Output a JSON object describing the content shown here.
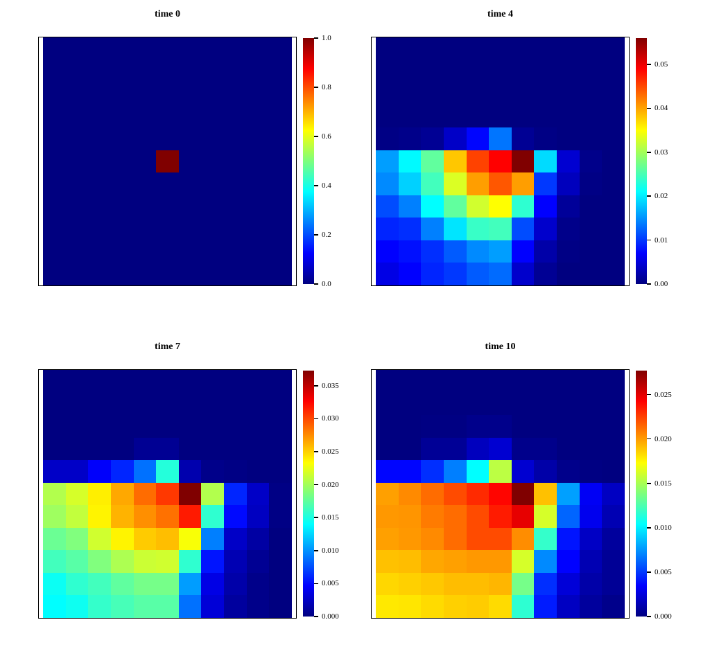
{
  "figure": {
    "background": "#ffffff",
    "layout": "2x2 panel grid of heatmaps with individual colorbars",
    "colormap_name": "jet",
    "colormap_hex_stops": [
      "#000080",
      "#0000ff",
      "#00ffff",
      "#7dff7d",
      "#ffff00",
      "#ff0000",
      "#800000"
    ]
  },
  "chart_data": [
    {
      "type": "heatmap",
      "title": "time 0",
      "grid_size": [
        11,
        11
      ],
      "zmin": 0,
      "zmax": 1.0,
      "colorbar": {
        "position": "right",
        "tick_labels": [
          "1.0",
          "0.8",
          "0.6",
          "0.4",
          "0.2",
          "0.0"
        ],
        "tick_values": [
          1.0,
          0.8,
          0.6,
          0.4,
          0.2,
          0.0
        ]
      },
      "values": [
        [
          0,
          0,
          0,
          0,
          0,
          0,
          0,
          0,
          0,
          0,
          0
        ],
        [
          0,
          0,
          0,
          0,
          0,
          0,
          0,
          0,
          0,
          0,
          0
        ],
        [
          0,
          0,
          0,
          0,
          0,
          0,
          0,
          0,
          0,
          0,
          0
        ],
        [
          0,
          0,
          0,
          0,
          0,
          0,
          0,
          0,
          0,
          0,
          0
        ],
        [
          0,
          0,
          0,
          0,
          0,
          0,
          0,
          0,
          0,
          0,
          0
        ],
        [
          0,
          0,
          0,
          0,
          0,
          1,
          0,
          0,
          0,
          0,
          0
        ],
        [
          0,
          0,
          0,
          0,
          0,
          0,
          0,
          0,
          0,
          0,
          0
        ],
        [
          0,
          0,
          0,
          0,
          0,
          0,
          0,
          0,
          0,
          0,
          0
        ],
        [
          0,
          0,
          0,
          0,
          0,
          0,
          0,
          0,
          0,
          0,
          0
        ],
        [
          0,
          0,
          0,
          0,
          0,
          0,
          0,
          0,
          0,
          0,
          0
        ],
        [
          0,
          0,
          0,
          0,
          0,
          0,
          0,
          0,
          0,
          0,
          0
        ]
      ]
    },
    {
      "type": "heatmap",
      "title": "time 4",
      "grid_size": [
        11,
        11
      ],
      "zmin": 0,
      "zmax": 0.056,
      "colorbar": {
        "position": "right",
        "tick_labels": [
          "0.05",
          "0.04",
          "0.03",
          "0.02",
          "0.01",
          "0.00"
        ],
        "tick_values": [
          0.05,
          0.04,
          0.03,
          0.02,
          0.01,
          0.0
        ]
      },
      "values": [
        [
          0,
          0,
          0,
          0,
          0,
          0,
          0,
          0,
          0,
          0,
          0
        ],
        [
          0,
          0,
          0,
          0,
          0,
          0,
          0,
          0,
          0,
          0,
          0
        ],
        [
          0,
          0,
          0,
          0,
          0,
          0,
          0,
          0,
          0,
          0,
          0
        ],
        [
          0,
          0,
          0,
          0,
          0,
          0,
          0,
          0,
          0,
          0,
          0
        ],
        [
          0.0003,
          0.0006,
          0.0011,
          0.0039,
          0.0073,
          0.0134,
          0.0011,
          0.0003,
          0,
          0,
          0
        ],
        [
          0.0157,
          0.0207,
          0.0263,
          0.0381,
          0.0454,
          0.049,
          0.056,
          0.019,
          0.0045,
          0.0006,
          0
        ],
        [
          0.0146,
          0.0185,
          0.0246,
          0.033,
          0.0403,
          0.0442,
          0.0403,
          0.0101,
          0.0034,
          0.0003,
          0
        ],
        [
          0.0112,
          0.014,
          0.021,
          0.0263,
          0.0325,
          0.035,
          0.0235,
          0.007,
          0.0014,
          0,
          0
        ],
        [
          0.009,
          0.0095,
          0.014,
          0.0196,
          0.0241,
          0.0246,
          0.0112,
          0.0042,
          0.0006,
          0,
          0
        ],
        [
          0.007,
          0.0078,
          0.0095,
          0.012,
          0.0146,
          0.0157,
          0.007,
          0.0022,
          0.0003,
          0,
          0
        ],
        [
          0.0056,
          0.007,
          0.009,
          0.0101,
          0.012,
          0.0129,
          0.0042,
          0.0011,
          0,
          0,
          0
        ]
      ]
    },
    {
      "type": "heatmap",
      "title": "time 7",
      "grid_size": [
        11,
        11
      ],
      "zmin": 0,
      "zmax": 0.0373,
      "colorbar": {
        "position": "right",
        "tick_labels": [
          "0.035",
          "0.030",
          "0.025",
          "0.020",
          "0.015",
          "0.010",
          "0.005",
          "0.000"
        ],
        "tick_values": [
          0.035,
          0.03,
          0.025,
          0.02,
          0.015,
          0.01,
          0.005,
          0.0
        ]
      },
      "values": [
        [
          0,
          0,
          0,
          0,
          0,
          0,
          0,
          0,
          0,
          0,
          0
        ],
        [
          0,
          0,
          0,
          0,
          0,
          0,
          0,
          0,
          0,
          0,
          0
        ],
        [
          0,
          0,
          0,
          0,
          0,
          0,
          0,
          0,
          0,
          0,
          0
        ],
        [
          0,
          0,
          0,
          0,
          0.0007,
          0.0007,
          0,
          0,
          0,
          0,
          0
        ],
        [
          0.0026,
          0.0026,
          0.0045,
          0.006,
          0.0088,
          0.0153,
          0.0017,
          0.0004,
          0.0002,
          0,
          0
        ],
        [
          0.0205,
          0.0218,
          0.0239,
          0.0265,
          0.0287,
          0.0306,
          0.0373,
          0.0205,
          0.006,
          0.0026,
          0.0002
        ],
        [
          0.0198,
          0.0211,
          0.0237,
          0.0261,
          0.0274,
          0.0285,
          0.0317,
          0.0157,
          0.005,
          0.0024,
          0.0002
        ],
        [
          0.0179,
          0.0187,
          0.0216,
          0.0237,
          0.0252,
          0.0257,
          0.0231,
          0.0093,
          0.0026,
          0.0013,
          0
        ],
        [
          0.0164,
          0.0172,
          0.0187,
          0.0203,
          0.0214,
          0.0216,
          0.0157,
          0.0054,
          0.0019,
          0.0007,
          0
        ],
        [
          0.0144,
          0.0157,
          0.0164,
          0.0175,
          0.0183,
          0.0183,
          0.0104,
          0.0037,
          0.0015,
          0.0004,
          0
        ],
        [
          0.014,
          0.0145,
          0.0159,
          0.0166,
          0.0172,
          0.0172,
          0.0088,
          0.0032,
          0.0011,
          0.0004,
          0
        ]
      ]
    },
    {
      "type": "heatmap",
      "title": "time 10",
      "grid_size": [
        11,
        11
      ],
      "zmin": 0,
      "zmax": 0.0277,
      "colorbar": {
        "position": "right",
        "tick_labels": [
          "0.025",
          "0.020",
          "0.015",
          "0.010",
          "0.005",
          "0.000"
        ],
        "tick_values": [
          0.025,
          0.02,
          0.015,
          0.01,
          0.005,
          0.0
        ]
      },
      "values": [
        [
          0,
          0,
          0,
          0,
          0,
          0,
          0,
          0,
          0,
          0,
          0
        ],
        [
          0,
          0,
          0,
          0,
          0,
          0,
          0,
          0,
          0,
          0,
          0
        ],
        [
          0,
          0,
          0.0001,
          0.0001,
          0.0003,
          0.0003,
          0,
          0,
          0,
          0,
          0
        ],
        [
          0,
          0,
          0.0006,
          0.0006,
          0.0017,
          0.0022,
          0.0003,
          0.0003,
          0,
          0,
          0
        ],
        [
          0.0036,
          0.0036,
          0.0047,
          0.0069,
          0.0104,
          0.0155,
          0.0022,
          0.0011,
          0.0003,
          0.0001,
          0
        ],
        [
          0.0199,
          0.0205,
          0.0213,
          0.0222,
          0.0231,
          0.0241,
          0.0277,
          0.019,
          0.0078,
          0.0032,
          0.0018
        ],
        [
          0.0201,
          0.0202,
          0.0209,
          0.0213,
          0.0222,
          0.0235,
          0.0249,
          0.0162,
          0.0062,
          0.003,
          0.0014
        ],
        [
          0.0199,
          0.0201,
          0.0205,
          0.0213,
          0.0222,
          0.0222,
          0.0204,
          0.0118,
          0.004,
          0.0019,
          0.0008
        ],
        [
          0.019,
          0.0191,
          0.0197,
          0.0199,
          0.0201,
          0.0201,
          0.0162,
          0.0072,
          0.0035,
          0.0014,
          0.0006
        ],
        [
          0.0184,
          0.0186,
          0.0188,
          0.0191,
          0.0191,
          0.0193,
          0.0136,
          0.0047,
          0.0024,
          0.0011,
          0.0006
        ],
        [
          0.0179,
          0.018,
          0.0183,
          0.0186,
          0.0187,
          0.0183,
          0.0116,
          0.0042,
          0.0018,
          0.0008,
          0.0003
        ]
      ]
    }
  ]
}
